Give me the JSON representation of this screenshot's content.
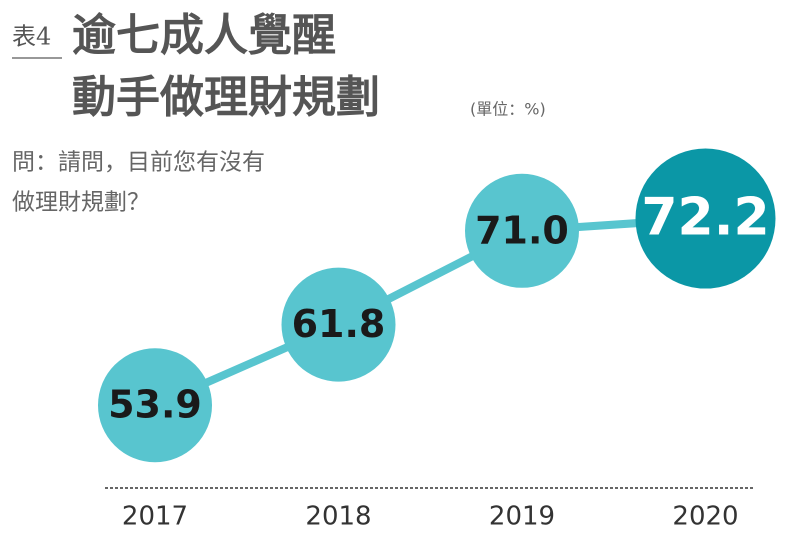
{
  "chart_data": {
    "type": "line",
    "label": "表4",
    "title_lines": [
      "逾七成人覺醒",
      "動手做理財規劃"
    ],
    "unit": "(單位：%)",
    "question_lines": [
      "問：請問，目前您有沒有",
      "做理財規劃？"
    ],
    "categories": [
      "2017",
      "2018",
      "2019",
      "2020"
    ],
    "values": [
      53.9,
      61.8,
      71.0,
      72.2
    ],
    "value_labels": [
      "53.9",
      "61.8",
      "71.0",
      "72.2"
    ],
    "color": "#58c5cf",
    "colors": [
      "#58c5cf",
      "#58c5cf",
      "#58c5cf",
      "#0b97a6"
    ]
  }
}
